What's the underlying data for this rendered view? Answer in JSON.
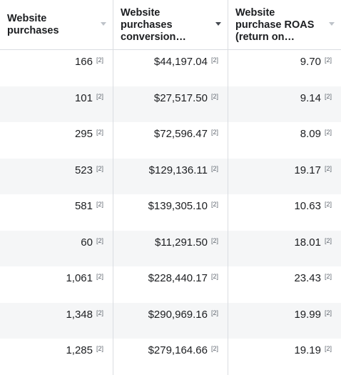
{
  "columns": [
    {
      "label": "Website\npurchases",
      "sorted": false
    },
    {
      "label": "Website\npurchases\nconversion…",
      "sorted": true
    },
    {
      "label": "Website\npurchase ROAS\n(return on…",
      "sorted": false
    }
  ],
  "footnote": "[2]",
  "rows": [
    [
      "166",
      "$44,197.04",
      "9.70"
    ],
    [
      "101",
      "$27,517.50",
      "9.14"
    ],
    [
      "295",
      "$72,596.47",
      "8.09"
    ],
    [
      "523",
      "$129,136.11",
      "19.17"
    ],
    [
      "581",
      "$139,305.10",
      "10.63"
    ],
    [
      "60",
      "$11,291.50",
      "18.01"
    ],
    [
      "1,061",
      "$228,440.17",
      "23.43"
    ],
    [
      "1,348",
      "$290,969.16",
      "19.99"
    ],
    [
      "1,285",
      "$279,164.66",
      "19.19"
    ]
  ]
}
